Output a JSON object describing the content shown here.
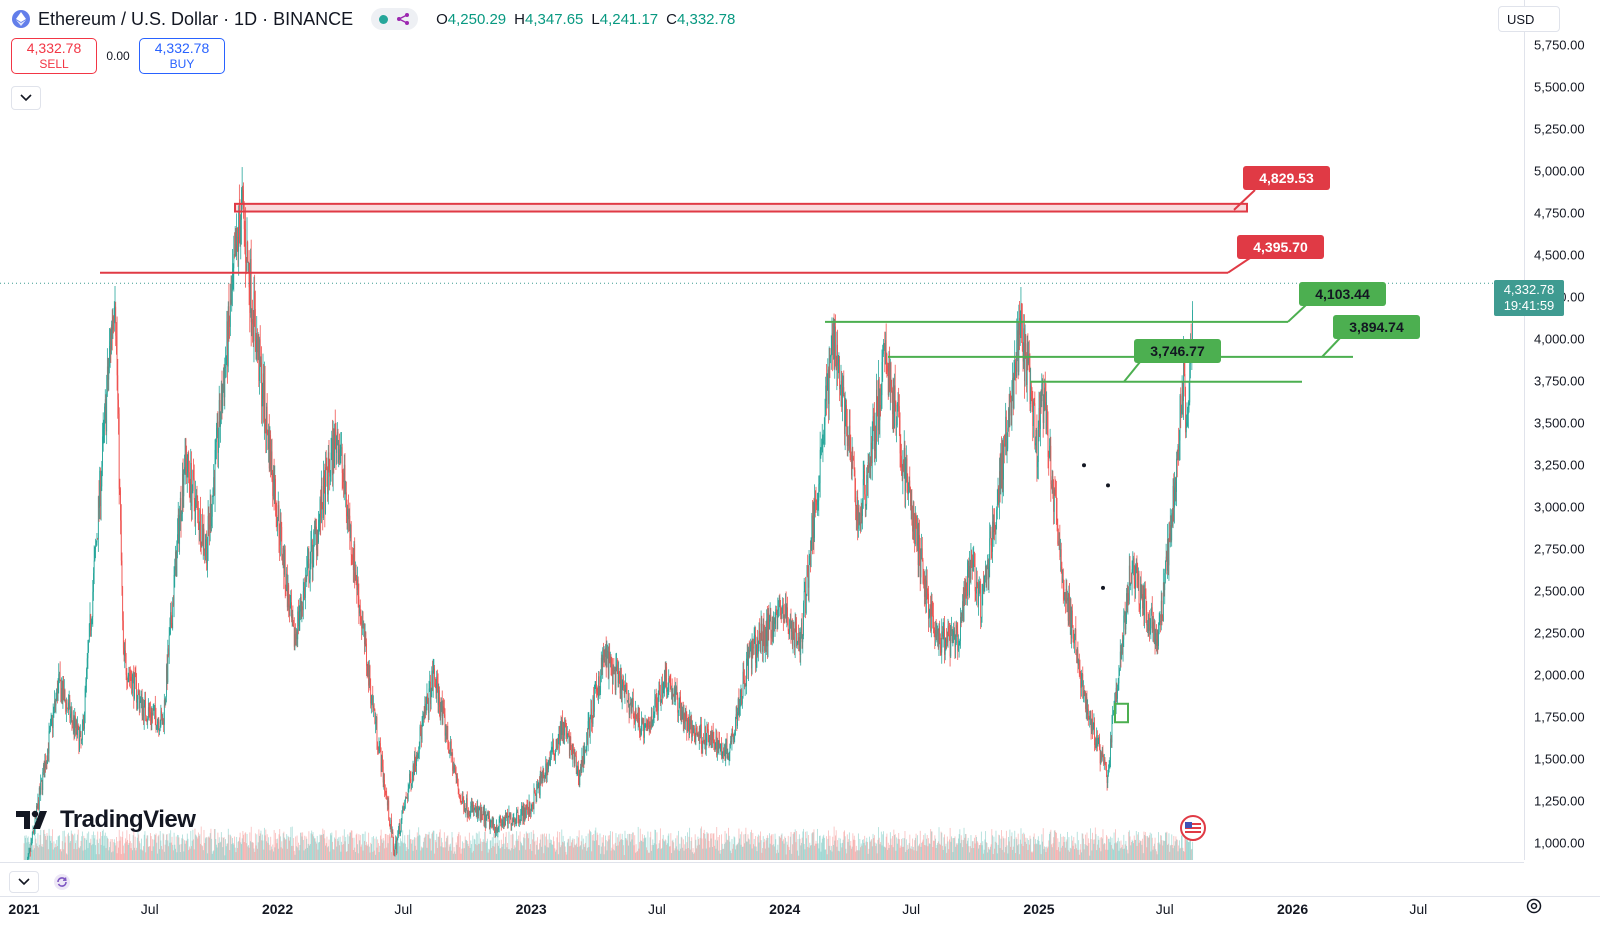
{
  "header": {
    "title": "Ethereum / U.S. Dollar · 1D · BINANCE",
    "ohlc": [
      {
        "label": "O",
        "value": "4,250.29"
      },
      {
        "label": "H",
        "value": "4,347.65"
      },
      {
        "label": "L",
        "value": "4,241.17"
      },
      {
        "label": "C",
        "value": "4,332.78"
      }
    ]
  },
  "trade": {
    "sell_price": "4,332.78",
    "sell_label": "SELL",
    "spread": "0.00",
    "buy_price": "4,332.78",
    "buy_label": "BUY"
  },
  "currency": "USD",
  "branding": "TradingView",
  "current_price": {
    "price": "4,332.78",
    "countdown": "19:41:59"
  },
  "price_axis": [
    "5,750.00",
    "5,500.00",
    "5,250.00",
    "5,000.00",
    "4,750.00",
    "4,500.00",
    "4,250.00",
    "4,000.00",
    "3,750.00",
    "3,500.00",
    "3,250.00",
    "3,000.00",
    "2,750.00",
    "2,500.00",
    "2,250.00",
    "2,000.00",
    "1,750.00",
    "1,500.00",
    "1,250.00",
    "1,000.00"
  ],
  "time_axis": [
    {
      "label": "2021",
      "bold": true
    },
    {
      "label": "Jul",
      "bold": false
    },
    {
      "label": "2022",
      "bold": true
    },
    {
      "label": "Jul",
      "bold": false
    },
    {
      "label": "2023",
      "bold": true
    },
    {
      "label": "Jul",
      "bold": false
    },
    {
      "label": "2024",
      "bold": true
    },
    {
      "label": "Jul",
      "bold": false
    },
    {
      "label": "2025",
      "bold": true
    },
    {
      "label": "Jul",
      "bold": false
    },
    {
      "label": "2026",
      "bold": true
    },
    {
      "label": "Jul",
      "bold": false
    }
  ],
  "levels": {
    "resistance_zone": "4,829.53",
    "resistance_line": "4,395.70",
    "support_1": "4,103.44",
    "support_2": "3,894.74",
    "support_3": "3,746.77"
  },
  "colors": {
    "up": "#26a69a",
    "down": "#ef5350",
    "resistance": "#e03a45",
    "support": "#4caf50",
    "accent": "#2962ff"
  },
  "chart_data": {
    "type": "candlestick",
    "title": "Ethereum / U.S. Dollar · 1D · BINANCE",
    "ylim": [
      900,
      5900
    ],
    "anchors": [
      [
        "2021-01-01",
        740
      ],
      [
        "2021-02-20",
        1950
      ],
      [
        "2021-03-25",
        1580
      ],
      [
        "2021-05-12",
        4350
      ],
      [
        "2021-05-24",
        2100
      ],
      [
        "2021-06-22",
        1800
      ],
      [
        "2021-07-20",
        1720
      ],
      [
        "2021-08-20",
        3300
      ],
      [
        "2021-09-21",
        2750
      ],
      [
        "2021-11-10",
        4800
      ],
      [
        "2021-12-04",
        3900
      ],
      [
        "2022-01-24",
        2200
      ],
      [
        "2022-03-28",
        3450
      ],
      [
        "2022-05-12",
        2000
      ],
      [
        "2022-06-18",
        950
      ],
      [
        "2022-08-14",
        2000
      ],
      [
        "2022-09-22",
        1250
      ],
      [
        "2022-11-09",
        1100
      ],
      [
        "2022-12-30",
        1200
      ],
      [
        "2023-02-16",
        1700
      ],
      [
        "2023-03-11",
        1400
      ],
      [
        "2023-04-16",
        2120
      ],
      [
        "2023-06-15",
        1650
      ],
      [
        "2023-07-14",
        2000
      ],
      [
        "2023-08-17",
        1680
      ],
      [
        "2023-10-12",
        1550
      ],
      [
        "2023-11-10",
        2100
      ],
      [
        "2023-12-28",
        2400
      ],
      [
        "2024-01-23",
        2170
      ],
      [
        "2024-03-12",
        4060
      ],
      [
        "2024-04-17",
        2900
      ],
      [
        "2024-05-26",
        3900
      ],
      [
        "2024-07-05",
        2900
      ],
      [
        "2024-08-05",
        2200
      ],
      [
        "2024-09-06",
        2200
      ],
      [
        "2024-09-27",
        2700
      ],
      [
        "2024-10-10",
        2380
      ],
      [
        "2024-12-06",
        4060
      ],
      [
        "2024-12-30",
        3330
      ],
      [
        "2025-01-06",
        3700
      ],
      [
        "2025-02-03",
        2600
      ],
      [
        "2025-03-11",
        1800
      ],
      [
        "2025-04-09",
        1400
      ],
      [
        "2025-05-13",
        2650
      ],
      [
        "2025-06-22",
        2200
      ],
      [
        "2025-07-14",
        3050
      ],
      [
        "2025-07-28",
        3850
      ],
      [
        "2025-08-02",
        3400
      ],
      [
        "2025-08-11",
        4332
      ]
    ]
  }
}
